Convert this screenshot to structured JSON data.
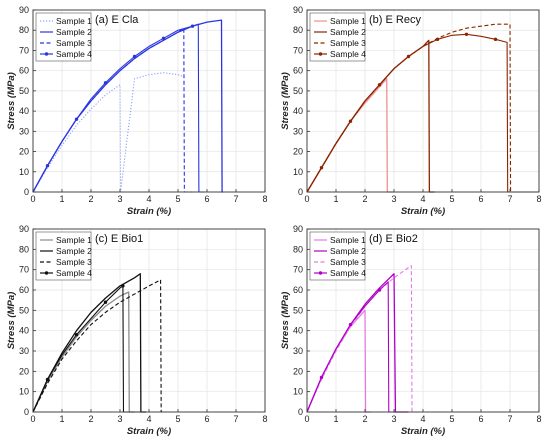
{
  "chart_data": [
    {
      "type": "line",
      "title": "(a) E Cla",
      "xlabel": "Strain (%)",
      "ylabel": "Stress (MPa)",
      "xlim": [
        0,
        8
      ],
      "ylim": [
        0,
        90
      ],
      "xticks": [
        "0",
        "1",
        "2",
        "3",
        "4",
        "5",
        "6",
        "7",
        "8"
      ],
      "yticks": [
        "0",
        "10",
        "20",
        "30",
        "40",
        "50",
        "60",
        "70",
        "80",
        "90"
      ],
      "grid": true,
      "legend_position": "top-left",
      "series": [
        {
          "name": "Sample 1",
          "color": "#8aa0ff",
          "dash": "dotted",
          "marker": "none",
          "x": [
            0,
            0.5,
            1,
            1.5,
            2,
            2.5,
            3,
            3.02,
            3.5,
            4,
            4.5,
            5,
            5.2
          ],
          "y": [
            0,
            12,
            23,
            33,
            41,
            48,
            53,
            0,
            56,
            58,
            59,
            58,
            57
          ]
        },
        {
          "name": "Sample 2",
          "color": "#2a35e0",
          "dash": "solid",
          "marker": "none",
          "x": [
            0,
            0.5,
            1,
            1.5,
            2,
            2.5,
            3,
            3.5,
            4,
            4.5,
            5,
            5.5,
            6,
            6.5,
            6.52,
            6.55
          ],
          "y": [
            0,
            13,
            25,
            36,
            45,
            53,
            60,
            66,
            71,
            75,
            79,
            82,
            84,
            85,
            0,
            0
          ]
        },
        {
          "name": "Sample 3",
          "color": "#2a35e0",
          "dash": "dashed",
          "marker": "none",
          "x": [
            0,
            0.5,
            1,
            1.5,
            2,
            2.5,
            3,
            3.5,
            4,
            4.5,
            5,
            5.2,
            5.22,
            5.5
          ],
          "y": [
            0,
            13,
            25,
            36,
            45,
            53,
            60,
            66,
            71,
            75,
            79,
            81,
            0,
            0
          ]
        },
        {
          "name": "Sample 4",
          "color": "#2a35e0",
          "dash": "solid",
          "marker": "dot",
          "x": [
            0,
            0.5,
            1,
            1.5,
            2,
            2.5,
            3,
            3.5,
            4,
            4.5,
            5,
            5.5,
            5.7,
            5.72,
            5.9
          ],
          "y": [
            0,
            13,
            25,
            36,
            46,
            54,
            61,
            67,
            72,
            76,
            80,
            82,
            83,
            0,
            0
          ]
        }
      ]
    },
    {
      "type": "line",
      "title": "(b) E Recy",
      "xlabel": "Strain (%)",
      "ylabel": "Stress (MPa)",
      "xlim": [
        0,
        8
      ],
      "ylim": [
        0,
        90
      ],
      "xticks": [
        "0",
        "1",
        "2",
        "3",
        "4",
        "5",
        "6",
        "7",
        "8"
      ],
      "yticks": [
        "0",
        "10",
        "20",
        "30",
        "40",
        "50",
        "60",
        "70",
        "80",
        "90"
      ],
      "grid": true,
      "legend_position": "top-left",
      "series": [
        {
          "name": "Sample 1",
          "color": "#f08f8f",
          "dash": "solid",
          "marker": "none",
          "x": [
            0,
            0.5,
            1,
            1.5,
            2,
            2.5,
            2.75,
            2.77,
            3
          ],
          "y": [
            0,
            12,
            24,
            35,
            44,
            52,
            56,
            0,
            0
          ]
        },
        {
          "name": "Sample 2",
          "color": "#8b2500",
          "dash": "solid",
          "marker": "none",
          "x": [
            0,
            0.5,
            1,
            1.5,
            2,
            2.5,
            3,
            3.5,
            4,
            4.2,
            4.22,
            4.4
          ],
          "y": [
            0,
            12,
            24,
            35,
            45,
            53,
            61,
            67,
            72,
            75,
            0,
            0
          ]
        },
        {
          "name": "Sample 3",
          "color": "#8b2500",
          "dash": "dashed",
          "marker": "none",
          "x": [
            0,
            0.5,
            1,
            1.5,
            2,
            2.5,
            3,
            3.5,
            4,
            4.5,
            5,
            5.5,
            6,
            6.5,
            7,
            7.02,
            7.2
          ],
          "y": [
            0,
            12,
            24,
            35,
            45,
            53,
            61,
            67,
            72,
            76,
            79,
            81,
            82,
            83,
            83,
            0,
            0
          ]
        },
        {
          "name": "Sample 4",
          "color": "#8b2500",
          "dash": "solid",
          "marker": "dot",
          "x": [
            0,
            0.5,
            1,
            1.5,
            2,
            2.5,
            3,
            3.5,
            4,
            4.5,
            5,
            5.5,
            6,
            6.5,
            6.9,
            6.92,
            7.5,
            8
          ],
          "y": [
            0,
            12,
            24,
            35,
            45,
            53,
            61,
            67,
            72,
            75.5,
            77.5,
            78,
            77,
            75.5,
            74,
            0,
            0,
            0
          ]
        }
      ]
    },
    {
      "type": "line",
      "title": "(c) E Bio1",
      "xlabel": "Strain (%)",
      "ylabel": "Stress (MPa)",
      "xlim": [
        0,
        8
      ],
      "ylim": [
        0,
        90
      ],
      "xticks": [
        "0",
        "1",
        "2",
        "3",
        "4",
        "5",
        "6",
        "7",
        "8"
      ],
      "yticks": [
        "0",
        "10",
        "20",
        "30",
        "40",
        "50",
        "60",
        "70",
        "80",
        "90"
      ],
      "grid": true,
      "legend_position": "top-left",
      "series": [
        {
          "name": "Sample 1",
          "color": "#8c8c8c",
          "dash": "solid",
          "marker": "none",
          "x": [
            0,
            0.5,
            1,
            1.5,
            2,
            2.5,
            3,
            3.3,
            3.32,
            3.5
          ],
          "y": [
            0,
            15,
            27,
            37,
            45,
            52,
            57,
            59,
            0,
            0
          ]
        },
        {
          "name": "Sample 2",
          "color": "#111111",
          "dash": "solid",
          "marker": "none",
          "x": [
            0,
            0.5,
            1,
            1.5,
            2,
            2.5,
            3,
            3.5,
            3.7,
            3.72,
            3.9
          ],
          "y": [
            0,
            16,
            29,
            40,
            49,
            56,
            62,
            66,
            68,
            0,
            0
          ]
        },
        {
          "name": "Sample 3",
          "color": "#111111",
          "dash": "dashed",
          "marker": "none",
          "x": [
            0,
            0.5,
            1,
            1.5,
            2,
            2.5,
            3,
            3.5,
            4,
            4.4,
            4.42,
            4.6
          ],
          "y": [
            0,
            14,
            26,
            35,
            43,
            49,
            54,
            58,
            62,
            65,
            0,
            0
          ]
        },
        {
          "name": "Sample 4",
          "color": "#111111",
          "dash": "solid",
          "marker": "dot",
          "x": [
            0,
            0.5,
            1,
            1.5,
            2,
            2.5,
            3,
            3.1,
            3.12,
            3.8
          ],
          "y": [
            0,
            16,
            28,
            38,
            46,
            54,
            61,
            62,
            0,
            0
          ]
        }
      ]
    },
    {
      "type": "line",
      "title": "(d) E Bio2",
      "xlabel": "Strain (%)",
      "ylabel": "Stress (MPa)",
      "xlim": [
        0,
        8
      ],
      "ylim": [
        0,
        90
      ],
      "xticks": [
        "0",
        "1",
        "2",
        "3",
        "4",
        "5",
        "6",
        "7",
        "8"
      ],
      "yticks": [
        "0",
        "10",
        "20",
        "30",
        "40",
        "50",
        "60",
        "70",
        "80",
        "90"
      ],
      "grid": true,
      "legend_position": "top-left",
      "series": [
        {
          "name": "Sample 1",
          "color": "#e47be4",
          "dash": "solid",
          "marker": "none",
          "x": [
            0,
            0.5,
            1,
            1.5,
            2,
            2.02,
            2.2
          ],
          "y": [
            0,
            17,
            31,
            42,
            50,
            0,
            0
          ]
        },
        {
          "name": "Sample 2",
          "color": "#b000c8",
          "dash": "solid",
          "marker": "none",
          "x": [
            0,
            0.5,
            1,
            1.5,
            2,
            2.5,
            3,
            3.05,
            3.5
          ],
          "y": [
            0,
            17,
            31,
            43,
            53,
            61,
            68,
            0,
            0
          ]
        },
        {
          "name": "Sample 3",
          "color": "#e47be4",
          "dash": "dashed",
          "marker": "none",
          "x": [
            0,
            0.5,
            1,
            1.5,
            2,
            2.5,
            3,
            3.5,
            3.6,
            3.62,
            3.8
          ],
          "y": [
            0,
            16,
            30,
            42,
            52,
            60,
            66,
            71,
            72,
            0,
            0
          ]
        },
        {
          "name": "Sample 4",
          "color": "#b000c8",
          "dash": "solid",
          "marker": "dot",
          "x": [
            0,
            0.5,
            1,
            1.5,
            2,
            2.5,
            2.8,
            2.82,
            3.2
          ],
          "y": [
            0,
            17,
            31,
            43,
            52,
            60,
            64,
            0,
            0
          ]
        }
      ]
    }
  ]
}
